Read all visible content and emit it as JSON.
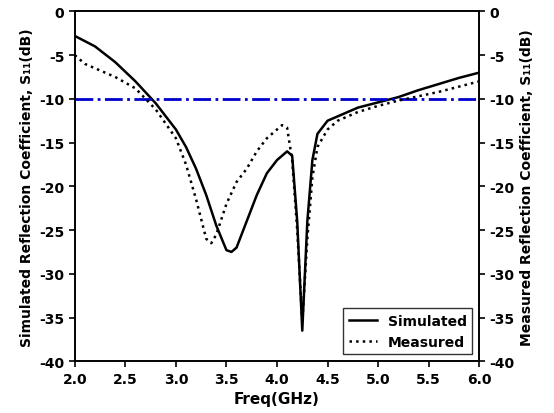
{
  "chart_data": {
    "type": "line",
    "x_label": "Freq(GHz)",
    "y_label": "Simulated Reflection Coefficient, S₁₁(dB)",
    "y2_label": "Measured Reflection Coefficient, S₁₁(dB)",
    "xlim": [
      2.0,
      6.0
    ],
    "xticks": [
      2.0,
      2.5,
      3.0,
      3.5,
      4.0,
      4.5,
      5.0,
      5.5,
      6.0
    ],
    "ylim": [
      -40,
      0
    ],
    "yticks": [
      -40,
      -35,
      -30,
      -25,
      -20,
      -15,
      -10,
      -5,
      0
    ],
    "y2lim": [
      -40,
      0
    ],
    "y2ticks": [
      -40,
      -35,
      -30,
      -25,
      -20,
      -15,
      -10,
      -5,
      0
    ],
    "legend": "lower right",
    "reference_line": {
      "value": -10,
      "color": "#0000cc",
      "line_style": "dashdot"
    },
    "series": [
      {
        "name": "Simulated",
        "color": "#000000",
        "line_style": "solid",
        "axis": "y",
        "x": [
          2.0,
          2.2,
          2.4,
          2.6,
          2.8,
          3.0,
          3.1,
          3.2,
          3.3,
          3.4,
          3.5,
          3.55,
          3.6,
          3.7,
          3.8,
          3.9,
          4.0,
          4.1,
          4.15,
          4.2,
          4.25,
          4.3,
          4.35,
          4.4,
          4.5,
          4.6,
          4.8,
          5.0,
          5.2,
          5.4,
          5.6,
          5.8,
          6.0
        ],
        "values": [
          -2.8,
          -4.0,
          -5.8,
          -8.0,
          -10.5,
          -13.5,
          -15.5,
          -18.0,
          -21.0,
          -24.5,
          -27.3,
          -27.5,
          -27.0,
          -24.0,
          -21.0,
          -18.5,
          -17.0,
          -16.0,
          -16.5,
          -24.0,
          -36.5,
          -24.0,
          -17.0,
          -14.0,
          -12.5,
          -12.0,
          -11.0,
          -10.4,
          -9.8,
          -9.0,
          -8.3,
          -7.6,
          -7.0
        ]
      },
      {
        "name": "Measured",
        "color": "#000000",
        "line_style": "dotted",
        "axis": "y2",
        "x": [
          2.0,
          2.1,
          2.2,
          2.4,
          2.6,
          2.7,
          2.8,
          3.0,
          3.1,
          3.2,
          3.3,
          3.35,
          3.4,
          3.5,
          3.6,
          3.7,
          3.8,
          3.9,
          4.0,
          4.05,
          4.1,
          4.15,
          4.2,
          4.25,
          4.3,
          4.35,
          4.4,
          4.5,
          4.6,
          4.8,
          5.0,
          5.2,
          5.4,
          5.6,
          5.8,
          6.0
        ],
        "values": [
          -5.0,
          -6.0,
          -6.5,
          -7.5,
          -8.8,
          -10.0,
          -11.2,
          -14.5,
          -17.5,
          -21.5,
          -26.0,
          -26.5,
          -25.5,
          -22.0,
          -19.5,
          -18.0,
          -16.0,
          -14.5,
          -13.5,
          -13.0,
          -13.3,
          -17.0,
          -25.0,
          -35.5,
          -26.0,
          -19.0,
          -15.5,
          -13.5,
          -12.5,
          -11.5,
          -10.8,
          -10.2,
          -9.7,
          -9.2,
          -8.6,
          -8.0
        ]
      }
    ]
  }
}
